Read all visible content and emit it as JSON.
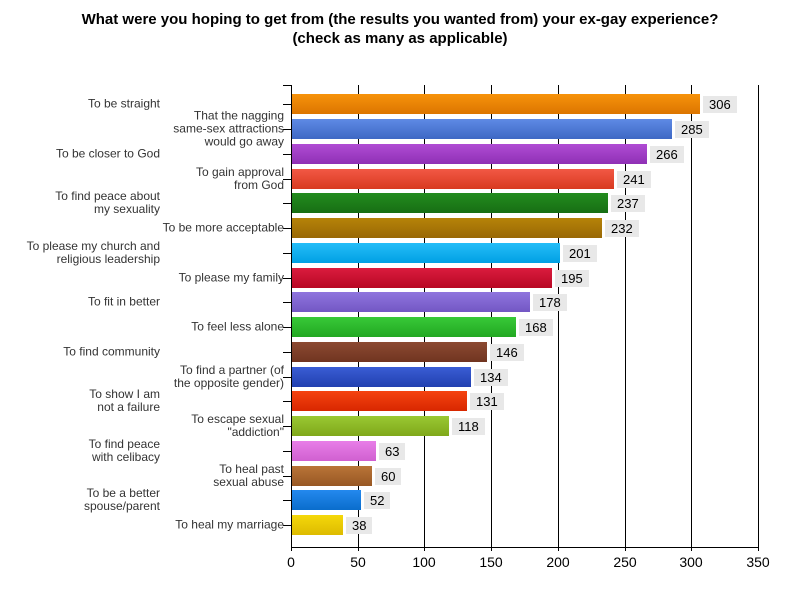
{
  "title": {
    "line1": "What were you hoping to get from (the results you wanted from) your ex-gay experience?",
    "line2": "(check as many as applicable)"
  },
  "chart_data": {
    "type": "bar",
    "orientation": "horizontal",
    "title": "What were you hoping to get from (the results you wanted from) your ex-gay experience? (check as many as applicable)",
    "xlabel": "",
    "ylabel": "",
    "xlim": [
      0,
      350
    ],
    "xticks": [
      0,
      50,
      100,
      150,
      200,
      250,
      300,
      350
    ],
    "grid": "vertical",
    "legend": "none",
    "value_labels": "shown at bar end on light gray background",
    "value_label_bg": "#E8E8E8",
    "label_layout": "category labels staggered: odd rows far left, even rows beside axis",
    "categories": [
      "To be straight",
      "That the nagging\nsame-sex attractions\nwould go away",
      "To be closer to God",
      "To gain approval\nfrom God",
      "To find peace about\nmy sexuality",
      "To be more acceptable",
      "To please my church and\nreligious leadership",
      "To please my family",
      "To fit in better",
      "To feel less alone",
      "To find community",
      "To find a partner (of\nthe opposite gender)",
      "To show I am\nnot a failure",
      "To escape sexual\n\"addiction\"",
      "To find peace\nwith celibacy",
      "To heal past\nsexual abuse",
      "To be a better\nspouse/parent",
      "To heal my marriage"
    ],
    "values": [
      306,
      285,
      266,
      241,
      237,
      232,
      201,
      195,
      178,
      168,
      146,
      134,
      131,
      118,
      63,
      60,
      52,
      38
    ],
    "bar_colors": [
      {
        "light": "#F7930B",
        "dark": "#DC7500"
      },
      {
        "light": "#5E8AE5",
        "dark": "#3E68C4"
      },
      {
        "light": "#B04CD4",
        "dark": "#8F30B5"
      },
      {
        "light": "#F25845",
        "dark": "#D83A20"
      },
      {
        "light": "#238C1E",
        "dark": "#176E14"
      },
      {
        "light": "#B68309",
        "dark": "#996805"
      },
      {
        "light": "#25BDF8",
        "dark": "#00A0E4"
      },
      {
        "light": "#DA1C3E",
        "dark": "#B80824"
      },
      {
        "light": "#8F75DE",
        "dark": "#7357C4"
      },
      {
        "light": "#38C938",
        "dark": "#22A822"
      },
      {
        "light": "#8C4A32",
        "dark": "#703420"
      },
      {
        "light": "#3A5DD4",
        "dark": "#2140B0"
      },
      {
        "light": "#F54310",
        "dark": "#D82700"
      },
      {
        "light": "#9AC833",
        "dark": "#7FA81A"
      },
      {
        "light": "#E87EE8",
        "dark": "#D060D0"
      },
      {
        "light": "#B97438",
        "dark": "#985824"
      },
      {
        "light": "#2489EE",
        "dark": "#0A6DCC"
      },
      {
        "light": "#F5D80A",
        "dark": "#DDBB00"
      }
    ]
  }
}
